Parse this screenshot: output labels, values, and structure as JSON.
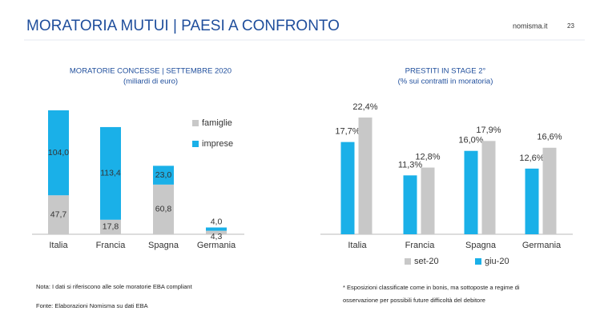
{
  "header": {
    "title": "MORATORIA MUTUI | PAESI A CONFRONTO",
    "site": "nomisma.it",
    "page": "23"
  },
  "chart_data": [
    {
      "type": "bar",
      "stacked": true,
      "title": "MORATORIE CONCESSE | SETTEMBRE 2020",
      "subtitle": "(miliardi di euro)",
      "categories": [
        "Italia",
        "Francia",
        "Spagna",
        "Germania"
      ],
      "series": [
        {
          "name": "famiglie",
          "color": "#c8c8c8",
          "values": [
            47.7,
            17.8,
            60.8,
            4.3
          ],
          "value_labels": [
            "47,7",
            "17,8",
            "60,8",
            "4,3"
          ]
        },
        {
          "name": "imprese",
          "color": "#1ab0e8",
          "values": [
            104.0,
            113.4,
            23.0,
            4.0
          ],
          "value_labels": [
            "104,0",
            "113,4",
            "23,0",
            "4,0"
          ]
        }
      ],
      "legend": "right"
    },
    {
      "type": "bar",
      "stacked": false,
      "title": "PRESTITI IN STAGE 2°",
      "subtitle": "(% sui contratti in moratoria)",
      "categories": [
        "Italia",
        "Francia",
        "Spagna",
        "Germania"
      ],
      "series": [
        {
          "name": "set-20",
          "color": "#c8c8c8",
          "values": [
            22.4,
            12.8,
            17.9,
            16.6
          ],
          "value_labels": [
            "22,4%",
            "12,8%",
            "17,9%",
            "16,6%"
          ]
        },
        {
          "name": "giu-20",
          "color": "#1ab0e8",
          "values": [
            17.7,
            11.3,
            16.0,
            12.6
          ],
          "value_labels": [
            "17,7%",
            "11,3%",
            "16,0%",
            "12,6%"
          ]
        }
      ],
      "legend": "bottom"
    }
  ],
  "notes": {
    "nota": "Nota: I dati si riferiscono alle sole moratorie EBA compliant",
    "fonte": "Fonte: Elaborazioni Nomisma su dati EBA",
    "footnote": [
      "* Esposizioni classificate come in bonis, ma sottoposte a regime di",
      "osservazione per possibili future difficoltà del debitore"
    ]
  }
}
